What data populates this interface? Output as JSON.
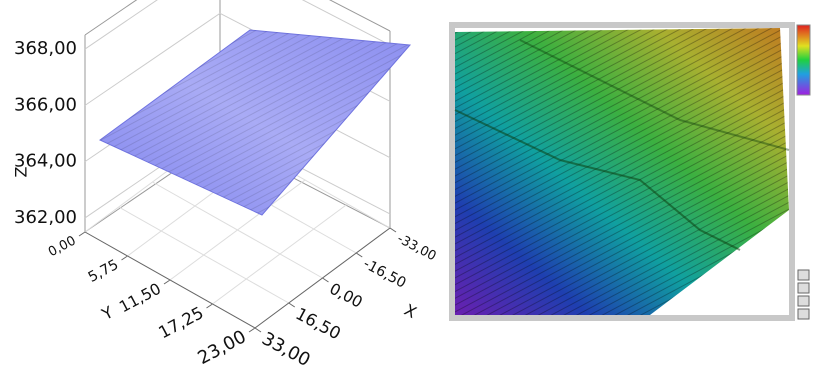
{
  "chart_data": [
    {
      "type": "surface3d",
      "xlabel": "X",
      "ylabel": "Y",
      "zlabel": "Z",
      "zlim": [
        361.5,
        368.5
      ],
      "zticks": [
        {
          "value": 362,
          "label": "362,00"
        },
        {
          "value": 364,
          "label": "364,00"
        },
        {
          "value": 366,
          "label": "366,00"
        },
        {
          "value": 368,
          "label": "368,00"
        }
      ],
      "ylim": [
        0,
        23
      ],
      "yticks": [
        {
          "value": 0,
          "label": "0,00"
        },
        {
          "value": 5.75,
          "label": "5,75"
        },
        {
          "value": 11.5,
          "label": "11,50"
        },
        {
          "value": 17.25,
          "label": "17,25"
        },
        {
          "value": 23,
          "label": "23,00"
        }
      ],
      "xlim": [
        33,
        -33
      ],
      "xticks": [
        {
          "value": 33,
          "label": "33,00"
        },
        {
          "value": 16.5,
          "label": "16,50"
        },
        {
          "value": 0,
          "label": "0,00"
        },
        {
          "value": -16.5,
          "label": "-16,50"
        },
        {
          "value": -33,
          "label": "-33,00"
        }
      ],
      "color": "#8c8ff0",
      "grid": true
    },
    {
      "type": "surface3d",
      "colormap": "rainbow"
    }
  ]
}
